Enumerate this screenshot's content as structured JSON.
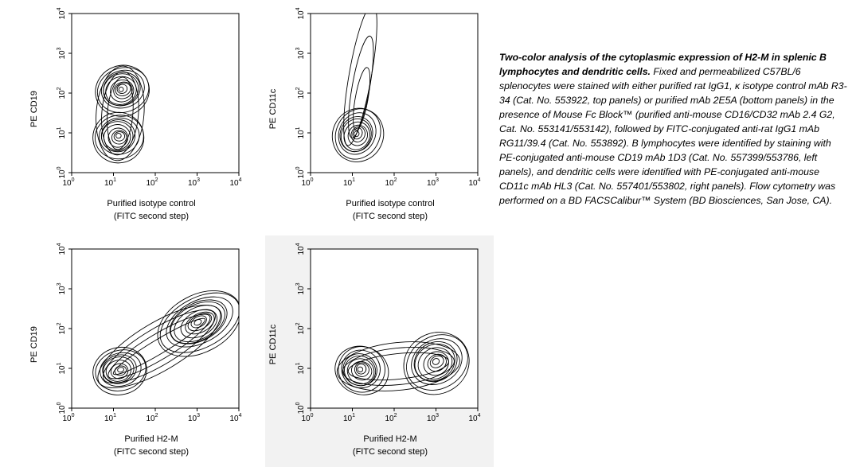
{
  "chart_data": [
    {
      "type": "contour",
      "panel": "top-left",
      "xlabel": "Purified isotype control",
      "xlabel2": "(FITC second step)",
      "ylabel": "PE CD19",
      "xscale": "log",
      "yscale": "log",
      "xlim": [
        1,
        10000
      ],
      "ylim": [
        1,
        10000
      ],
      "xticks": [
        "10",
        "10",
        "10",
        "10",
        "10"
      ],
      "xtick_exponents": [
        "0",
        "1",
        "2",
        "3",
        "4"
      ],
      "yticks": [
        "10",
        "10",
        "10",
        "10",
        "10"
      ],
      "ytick_exponents": [
        "0",
        "1",
        "2",
        "3",
        "4"
      ],
      "populations": [
        {
          "x_center": 16,
          "y_center": 120,
          "levels": 11
        },
        {
          "x_center": 13,
          "y_center": 8,
          "levels": 10
        }
      ]
    },
    {
      "type": "contour",
      "panel": "top-right",
      "xlabel": "Purified isotype control",
      "xlabel2": "(FITC second step)",
      "ylabel": "PE CD11c",
      "xscale": "log",
      "yscale": "log",
      "xlim": [
        1,
        10000
      ],
      "ylim": [
        1,
        10000
      ],
      "xticks": [
        "10",
        "10",
        "10",
        "10",
        "10"
      ],
      "xtick_exponents": [
        "0",
        "1",
        "2",
        "3",
        "4"
      ],
      "yticks": [
        "10",
        "10",
        "10",
        "10",
        "10"
      ],
      "ytick_exponents": [
        "0",
        "1",
        "2",
        "3",
        "4"
      ],
      "populations": [
        {
          "x_center": 13,
          "y_center": 9,
          "levels": 10
        }
      ]
    },
    {
      "type": "contour",
      "panel": "bottom-left",
      "xlabel": "Purified H2-M",
      "xlabel2": "(FITC second step)",
      "ylabel": "PE CD19",
      "xscale": "log",
      "yscale": "log",
      "xlim": [
        1,
        10000
      ],
      "ylim": [
        1,
        10000
      ],
      "xticks": [
        "10",
        "10",
        "10",
        "10",
        "10"
      ],
      "xtick_exponents": [
        "0",
        "1",
        "2",
        "3",
        "4"
      ],
      "yticks": [
        "10",
        "10",
        "10",
        "10",
        "10"
      ],
      "ytick_exponents": [
        "0",
        "1",
        "2",
        "3",
        "4"
      ],
      "populations": [
        {
          "x_center": 14,
          "y_center": 9,
          "levels": 9
        },
        {
          "x_center": 1100,
          "y_center": 140,
          "levels": 11
        }
      ]
    },
    {
      "type": "contour",
      "panel": "bottom-right",
      "xlabel": "Purified H2-M",
      "xlabel2": "(FITC second step)",
      "ylabel": "PE CD11c",
      "xscale": "log",
      "yscale": "log",
      "xlim": [
        1,
        10000
      ],
      "ylim": [
        1,
        10000
      ],
      "xticks": [
        "10",
        "10",
        "10",
        "10",
        "10"
      ],
      "xtick_exponents": [
        "0",
        "1",
        "2",
        "3",
        "4"
      ],
      "yticks": [
        "10",
        "10",
        "10",
        "10",
        "10"
      ],
      "ytick_exponents": [
        "0",
        "1",
        "2",
        "3",
        "4"
      ],
      "populations": [
        {
          "x_center": 16,
          "y_center": 9,
          "levels": 10
        },
        {
          "x_center": 1000,
          "y_center": 14,
          "levels": 10
        }
      ]
    }
  ],
  "caption": {
    "title": "Two-color analysis of the cytoplasmic expression of H2-M in splenic B lymphocytes and dendritic cells.",
    "body": " Fixed and permeabilized C57BL/6 splenocytes were stained with either purified rat IgG1, κ isotype control mAb R3-34 (Cat. No. 553922, top panels) or purified mAb 2E5A (bottom panels) in the presence of Mouse Fc Block™ (purified anti-mouse CD16/CD32 mAb 2.4 G2, Cat. No. 553141/553142), followed by FITC-conjugated anti-rat IgG1 mAb RG11/39.4 (Cat. No. 553892). B lymphocytes were identified by staining with PE-conjugated anti-mouse CD19 mAb 1D3 (Cat. No. 557399/553786, left panels), and dendritic cells were identified with PE-conjugated anti-mouse CD11c mAb HL3 (Cat. No. 557401/553802, right panels). Flow cytometry was performed on a BD FACSCalibur™ System (BD Biosciences, San Jose, CA)."
  },
  "colors": {
    "line": "#000000",
    "background": "#ffffff",
    "panel_shade": "#f2f2f2"
  }
}
